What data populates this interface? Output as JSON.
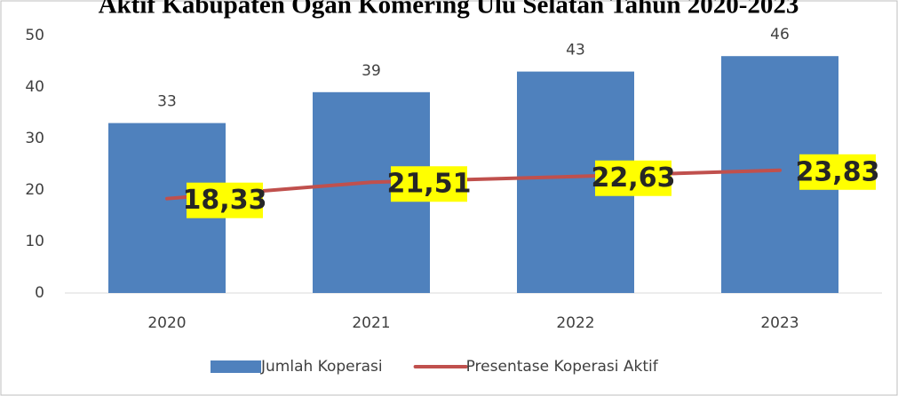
{
  "chart_data": {
    "type": "bar",
    "title": "Aktif Kabupaten Ogan Komering Ulu Selatan Tahun 2020-2023",
    "categories": [
      "2020",
      "2021",
      "2022",
      "2023"
    ],
    "series": [
      {
        "name": "Jumlah Koperasi",
        "type": "bar",
        "color": "#4f81bd",
        "values": [
          33,
          39,
          43,
          46
        ]
      },
      {
        "name": "Presentase Koperasi Aktif",
        "type": "line",
        "color": "#c0504d",
        "values": [
          18.33,
          21.51,
          22.63,
          23.83
        ],
        "value_labels": [
          "18,33",
          "21,51",
          "22,63",
          "23,83"
        ]
      }
    ],
    "ylim": [
      0,
      50
    ],
    "yticks": [
      0,
      10,
      20,
      30,
      40,
      50
    ],
    "grid": false,
    "legend": "bottom"
  }
}
